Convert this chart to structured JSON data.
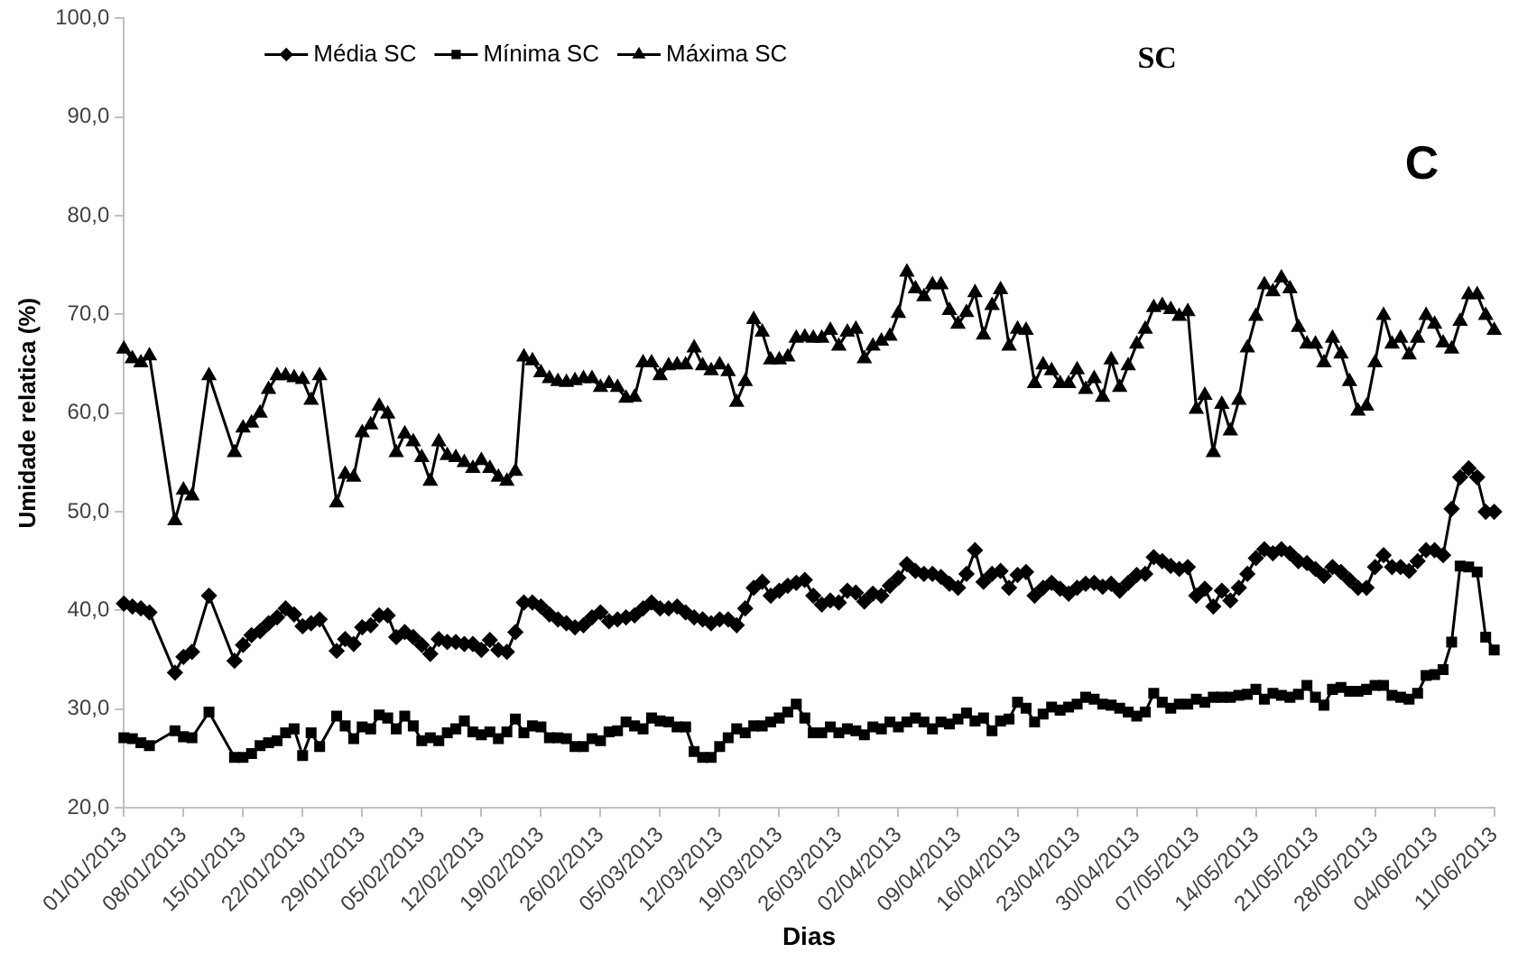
{
  "chart_data": {
    "type": "line",
    "title": "SC",
    "xlabel": "Dias",
    "ylabel": "Umidade relatica (%)",
    "annotations": [
      "C"
    ],
    "legend": "top left",
    "grid": false,
    "categories": [
      "01/01/2013",
      null,
      null,
      null,
      null,
      null,
      null,
      "08/01/2013",
      null,
      null,
      null,
      null,
      null,
      null,
      "15/01/2013",
      null,
      null,
      null,
      null,
      null,
      null,
      "22/01/2013",
      null,
      null,
      null,
      null,
      null,
      null,
      "29/01/2013",
      null,
      null,
      null,
      null,
      null,
      null,
      "05/02/2013",
      null,
      null,
      null,
      null,
      null,
      null,
      "12/02/2013",
      null,
      null,
      null,
      null,
      null,
      null,
      "19/02/2013",
      null,
      null,
      null,
      null,
      null,
      null,
      "26/02/2013",
      null,
      null,
      null,
      null,
      null,
      null,
      "05/03/2013",
      null,
      null,
      null,
      null,
      null,
      null,
      "12/03/2013",
      null,
      null,
      null,
      null,
      null,
      null,
      "19/03/2013",
      null,
      null,
      null,
      null,
      null,
      null,
      "26/03/2013",
      null,
      null,
      null,
      null,
      null,
      null,
      "02/04/2013",
      null,
      null,
      null,
      null,
      null,
      null,
      "09/04/2013",
      null,
      null,
      null,
      null,
      null,
      null,
      "16/04/2013",
      null,
      null,
      null,
      null,
      null,
      null,
      "23/04/2013",
      null,
      null,
      null,
      null,
      null,
      null,
      "30/04/2013",
      null,
      null,
      null,
      null,
      null,
      null,
      "07/05/2013",
      null,
      null,
      null,
      null,
      null,
      null,
      "14/05/2013",
      null,
      null,
      null,
      null,
      null,
      null,
      "21/05/2013",
      null,
      null,
      null,
      null,
      null,
      null,
      "28/05/2013",
      null,
      null,
      null,
      null,
      null,
      null,
      "04/06/2013",
      null,
      null,
      null,
      null,
      null,
      null,
      "11/06/2013"
    ],
    "ylim": [
      20,
      100
    ],
    "yticks": [
      {
        "value": 20,
        "label": "20,0"
      },
      {
        "value": 30,
        "label": "30,0"
      },
      {
        "value": 40,
        "label": "40,0"
      },
      {
        "value": 50,
        "label": "50,0"
      },
      {
        "value": 60,
        "label": "60,0"
      },
      {
        "value": 70,
        "label": "70,0"
      },
      {
        "value": 80,
        "label": "80,0"
      },
      {
        "value": 90,
        "label": "90,0"
      },
      {
        "value": 100,
        "label": "100,0"
      }
    ],
    "series": [
      {
        "name": "Média SC",
        "color": "#000000",
        "marker": "diamond",
        "values": [
          40.7,
          40.4,
          40.2,
          39.8,
          null,
          null,
          33.7,
          35.3,
          35.8,
          null,
          41.5,
          null,
          null,
          34.9,
          36.5,
          37.5,
          37.9,
          38.7,
          39.3,
          40.2,
          39.6,
          38.4,
          38.7,
          39.1,
          null,
          35.9,
          37.1,
          36.6,
          38.3,
          38.5,
          39.5,
          39.5,
          37.3,
          37.8,
          37.3,
          36.5,
          35.6,
          37.1,
          36.8,
          36.8,
          36.6,
          36.6,
          36.0,
          37.0,
          36.0,
          35.8,
          37.8,
          40.8,
          40.8,
          40.4,
          39.6,
          39.1,
          38.7,
          38.3,
          38.5,
          39.3,
          39.8,
          38.9,
          39.1,
          39.3,
          39.5,
          40.2,
          40.8,
          40.2,
          40.2,
          40.4,
          39.8,
          39.3,
          39.1,
          38.7,
          39.1,
          39.1,
          38.5,
          40.2,
          42.3,
          42.9,
          41.5,
          42.0,
          42.5,
          42.8,
          43.1,
          41.5,
          40.6,
          41.0,
          40.8,
          42.0,
          41.8,
          40.9,
          41.7,
          41.5,
          42.5,
          43.3,
          44.7,
          44.0,
          43.7,
          43.7,
          43.4,
          42.7,
          42.3,
          43.7,
          46.1,
          42.9,
          43.7,
          44.0,
          42.3,
          43.6,
          43.9,
          41.5,
          42.3,
          42.8,
          42.2,
          41.7,
          42.3,
          42.7,
          42.8,
          42.4,
          42.7,
          42.0,
          42.8,
          43.6,
          43.7,
          45.4,
          45.0,
          44.5,
          44.2,
          44.4,
          41.5,
          42.2,
          40.4,
          42.0,
          41.0,
          42.3,
          43.7,
          45.3,
          46.2,
          45.8,
          46.2,
          45.8,
          45.0,
          44.8,
          44.2,
          43.5,
          44.4,
          43.9,
          43.1,
          42.3,
          42.3,
          44.4,
          45.6,
          44.4,
          44.4,
          44.0,
          45.0,
          46.1,
          46.1,
          45.6,
          50.3,
          53.5,
          54.4,
          53.5,
          50.0,
          50.0
        ]
      },
      {
        "name": "Mínima SC",
        "color": "#000000",
        "marker": "square",
        "values": [
          27.1,
          27.0,
          26.6,
          26.3,
          null,
          null,
          27.8,
          27.2,
          27.1,
          null,
          29.7,
          null,
          null,
          25.1,
          25.1,
          25.5,
          26.3,
          26.6,
          26.8,
          27.6,
          28.0,
          25.3,
          27.6,
          26.2,
          null,
          29.3,
          28.3,
          27.0,
          28.2,
          28.0,
          29.4,
          29.1,
          28.0,
          29.3,
          28.3,
          26.8,
          27.1,
          26.8,
          27.6,
          28.0,
          28.8,
          27.7,
          27.4,
          27.7,
          27.0,
          27.7,
          29.0,
          27.6,
          28.3,
          28.2,
          27.1,
          27.1,
          27.0,
          26.2,
          26.2,
          27.0,
          26.8,
          27.7,
          27.8,
          28.7,
          28.3,
          28.0,
          29.1,
          28.8,
          28.7,
          28.2,
          28.2,
          25.7,
          25.1,
          25.1,
          26.2,
          27.1,
          28.0,
          27.6,
          28.3,
          28.3,
          28.7,
          29.1,
          29.7,
          30.5,
          29.1,
          27.6,
          27.6,
          28.2,
          27.6,
          28.0,
          27.8,
          27.4,
          28.2,
          28.0,
          28.7,
          28.2,
          28.7,
          29.1,
          28.7,
          28.0,
          28.7,
          28.5,
          29.0,
          29.6,
          28.8,
          29.1,
          27.8,
          28.8,
          29.0,
          30.7,
          30.1,
          28.7,
          29.5,
          30.2,
          29.9,
          30.2,
          30.5,
          31.2,
          31.0,
          30.5,
          30.4,
          30.1,
          29.7,
          29.3,
          29.7,
          31.6,
          30.7,
          30.1,
          30.5,
          30.5,
          31.0,
          30.7,
          31.2,
          31.2,
          31.2,
          31.4,
          31.5,
          32.0,
          31.0,
          31.6,
          31.4,
          31.2,
          31.5,
          32.4,
          31.2,
          30.4,
          32.0,
          32.2,
          31.8,
          31.8,
          32.0,
          32.4,
          32.4,
          31.4,
          31.2,
          31.0,
          31.6,
          33.4,
          33.5,
          34.0,
          36.8,
          44.5,
          44.4,
          43.9,
          37.3,
          36.0
        ]
      },
      {
        "name": "Máxima SC",
        "color": "#000000",
        "marker": "triangle",
        "values": [
          66.5,
          65.5,
          65.1,
          65.8,
          null,
          null,
          49.1,
          52.2,
          51.6,
          null,
          63.8,
          null,
          null,
          56.0,
          58.5,
          59.0,
          60.0,
          62.4,
          63.8,
          63.8,
          63.6,
          63.4,
          61.3,
          63.8,
          null,
          50.9,
          53.8,
          53.5,
          58.0,
          58.8,
          60.7,
          59.9,
          56.0,
          57.9,
          57.1,
          55.5,
          53.1,
          57.1,
          55.7,
          55.5,
          55.0,
          54.4,
          55.2,
          54.4,
          53.5,
          53.1,
          54.1,
          65.7,
          65.3,
          64.1,
          63.5,
          63.2,
          63.1,
          63.3,
          63.5,
          63.5,
          62.6,
          63.0,
          62.6,
          61.5,
          61.6,
          65.1,
          65.1,
          63.8,
          64.8,
          64.9,
          64.9,
          66.6,
          64.8,
          64.3,
          64.9,
          64.2,
          61.1,
          63.2,
          69.5,
          68.2,
          65.4,
          65.4,
          65.7,
          67.6,
          67.7,
          67.6,
          67.6,
          68.4,
          66.8,
          68.2,
          68.5,
          65.5,
          66.8,
          67.3,
          67.8,
          70.1,
          74.3,
          72.6,
          71.8,
          73.0,
          73.0,
          70.4,
          69.0,
          70.2,
          72.2,
          67.9,
          70.9,
          72.5,
          66.8,
          68.5,
          68.4,
          63.0,
          64.9,
          64.3,
          63.0,
          63.0,
          64.4,
          62.4,
          63.5,
          61.6,
          65.4,
          62.6,
          64.8,
          67.0,
          68.5,
          70.7,
          70.9,
          70.5,
          69.8,
          70.3,
          60.4,
          61.8,
          56.0,
          60.9,
          58.2,
          61.3,
          66.6,
          69.8,
          73.0,
          72.3,
          73.7,
          72.6,
          68.7,
          67.0,
          67.0,
          65.1,
          67.6,
          66.0,
          63.2,
          60.2,
          60.7,
          65.1,
          69.9,
          67.0,
          67.6,
          65.9,
          67.6,
          69.9,
          69.0,
          67.1,
          66.5,
          69.3,
          72.0,
          72.0,
          69.9,
          68.4
        ]
      }
    ]
  }
}
